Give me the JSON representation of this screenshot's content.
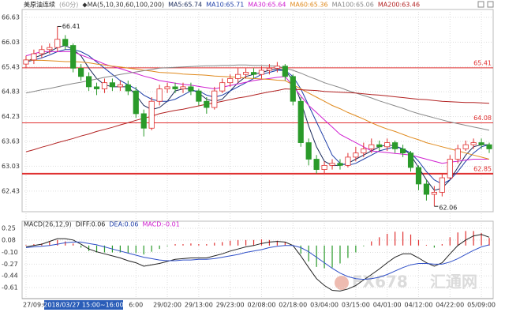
{
  "chart_data": [
    {
      "type": "candlestick",
      "header": [
        {
          "text": "美原油连续",
          "color": "#222222"
        },
        {
          "text": "(60分)",
          "color": "#999999"
        },
        {
          "text": "◆MA(5,10,30,60,100,200)",
          "color": "#333333"
        },
        {
          "text": "MA5:65.74",
          "color": "#1a2a5a"
        },
        {
          "text": "MA10:65.71",
          "color": "#1f3fa8"
        },
        {
          "text": "MA30:65.64",
          "color": "#d020d0"
        },
        {
          "text": "MA60:65.36",
          "color": "#e08a1e"
        },
        {
          "text": "MA100:65.06",
          "color": "#888888"
        },
        {
          "text": "MA200:63.46",
          "color": "#b22222"
        }
      ],
      "categories": [
        "27/09:0",
        null,
        null,
        null,
        null,
        null,
        null,
        null,
        null,
        null,
        null,
        null,
        null,
        null,
        "6:00",
        null,
        null,
        null,
        "29/02:00",
        null,
        null,
        null,
        "29/13:00",
        null,
        null,
        null,
        "29/23:00",
        null,
        null,
        null,
        "02/08:00",
        null,
        null,
        null,
        "02/18:00",
        null,
        null,
        null,
        "03/04:00",
        null,
        null,
        null,
        "03/15:00",
        null,
        null,
        null,
        "04/01:00",
        null,
        null,
        null,
        "04/12:00",
        null,
        null,
        null,
        "04/22:00",
        null,
        null,
        null,
        "05/09:00",
        null
      ],
      "cursor_label": "2018/03/27 15:00~16:00",
      "open": [
        65.5,
        65.6,
        65.75,
        65.85,
        65.9,
        66.1,
        65.95,
        65.4,
        65.2,
        64.95,
        64.9,
        65.05,
        64.95,
        65.0,
        64.85,
        64.3,
        63.95,
        64.6,
        64.9,
        64.95,
        64.9,
        64.95,
        64.85,
        64.6,
        64.45,
        64.85,
        65.05,
        65.15,
        65.25,
        65.3,
        65.25,
        65.35,
        65.4,
        65.45,
        65.2,
        64.6,
        63.6,
        63.2,
        62.95,
        63.05,
        63.1,
        63.05,
        63.25,
        63.35,
        63.45,
        63.55,
        63.5,
        63.6,
        63.45,
        63.35,
        63.0,
        62.6,
        62.35,
        62.4,
        62.75,
        63.2,
        63.45,
        63.55,
        63.6,
        63.55
      ],
      "high": [
        65.7,
        65.85,
        65.95,
        66.0,
        66.41,
        66.2,
        66.0,
        65.5,
        65.3,
        65.05,
        65.15,
        65.15,
        65.1,
        65.1,
        64.95,
        64.4,
        64.7,
        65.0,
        65.05,
        65.05,
        65.05,
        65.05,
        64.9,
        64.7,
        64.95,
        65.15,
        65.25,
        65.4,
        65.4,
        65.4,
        65.45,
        65.5,
        65.55,
        65.5,
        65.25,
        64.7,
        63.7,
        63.3,
        63.15,
        63.2,
        63.2,
        63.35,
        63.5,
        63.6,
        63.7,
        63.65,
        63.7,
        63.65,
        63.55,
        63.4,
        63.05,
        62.7,
        62.55,
        62.85,
        63.3,
        63.55,
        63.65,
        63.7,
        63.7,
        63.6
      ],
      "low": [
        65.4,
        65.5,
        65.65,
        65.75,
        65.8,
        65.85,
        65.3,
        65.1,
        64.85,
        64.75,
        64.8,
        64.85,
        64.85,
        64.75,
        64.2,
        63.75,
        63.9,
        64.5,
        64.8,
        64.8,
        64.8,
        64.75,
        64.5,
        64.3,
        64.4,
        64.8,
        64.95,
        65.05,
        65.15,
        65.15,
        65.15,
        65.25,
        65.3,
        65.1,
        64.5,
        63.5,
        63.05,
        62.85,
        62.85,
        62.95,
        62.95,
        63.0,
        63.15,
        63.25,
        63.35,
        63.4,
        63.4,
        63.35,
        63.25,
        62.9,
        62.45,
        62.2,
        62.06,
        62.3,
        62.7,
        63.1,
        63.4,
        63.45,
        63.45,
        63.35
      ],
      "close": [
        65.6,
        65.75,
        65.85,
        65.9,
        66.1,
        65.95,
        65.4,
        65.2,
        64.95,
        64.9,
        65.05,
        64.95,
        65.0,
        64.85,
        64.3,
        63.95,
        64.6,
        64.9,
        64.95,
        64.9,
        64.95,
        64.85,
        64.6,
        64.45,
        64.85,
        65.05,
        65.15,
        65.25,
        65.3,
        65.25,
        65.35,
        65.4,
        65.45,
        65.2,
        64.6,
        63.6,
        63.2,
        62.95,
        63.05,
        63.1,
        63.05,
        63.25,
        63.35,
        63.45,
        63.55,
        63.5,
        63.6,
        63.45,
        63.35,
        63.0,
        62.6,
        62.35,
        62.4,
        62.75,
        63.2,
        63.45,
        63.55,
        63.6,
        63.55,
        63.45
      ],
      "up_color": "#e03030",
      "down_color": "#2a9a2a",
      "ylim": [
        61.93,
        66.82
      ],
      "yticks": [
        66.63,
        66.03,
        65.43,
        64.83,
        64.23,
        63.63,
        63.03,
        62.43
      ],
      "levels": [
        65.41,
        64.08,
        62.85
      ],
      "level_color": "#e03030",
      "series": [
        {
          "name": "MA5",
          "color": "#1a2a5a",
          "values": [
            65.55,
            65.65,
            65.72,
            65.8,
            65.9,
            65.95,
            65.85,
            65.7,
            65.4,
            65.15,
            65.0,
            64.95,
            64.95,
            64.95,
            64.75,
            64.5,
            64.4,
            64.45,
            64.6,
            64.85,
            64.9,
            64.9,
            64.8,
            64.65,
            64.6,
            64.65,
            64.85,
            65.05,
            65.2,
            65.25,
            65.3,
            65.35,
            65.38,
            65.35,
            65.1,
            64.6,
            64.0,
            63.5,
            63.15,
            63.05,
            63.05,
            63.1,
            63.2,
            63.3,
            63.4,
            63.5,
            63.55,
            63.52,
            63.45,
            63.3,
            63.0,
            62.7,
            62.45,
            62.5,
            62.7,
            63.0,
            63.3,
            63.5,
            63.55,
            63.55
          ]
        },
        {
          "name": "MA10",
          "color": "#1f3fa8",
          "values": [
            65.55,
            65.6,
            65.65,
            65.72,
            65.8,
            65.85,
            65.85,
            65.8,
            65.7,
            65.55,
            65.4,
            65.25,
            65.1,
            65.0,
            64.9,
            64.75,
            64.65,
            64.6,
            64.6,
            64.65,
            64.75,
            64.85,
            64.85,
            64.75,
            64.7,
            64.75,
            64.85,
            64.95,
            65.05,
            65.15,
            65.25,
            65.3,
            65.35,
            65.35,
            65.2,
            64.9,
            64.5,
            64.1,
            63.7,
            63.3,
            63.1,
            63.05,
            63.1,
            63.2,
            63.3,
            63.4,
            63.45,
            63.5,
            63.45,
            63.35,
            63.15,
            62.9,
            62.7,
            62.6,
            62.7,
            62.9,
            63.15,
            63.35,
            63.5,
            63.55
          ]
        },
        {
          "name": "MA30",
          "color": "#d020d0",
          "values": [
            65.7,
            65.75,
            65.8,
            65.8,
            65.8,
            65.8,
            65.8,
            65.72,
            65.65,
            65.58,
            65.5,
            65.44,
            65.39,
            65.33,
            65.27,
            65.21,
            65.16,
            65.1,
            65.07,
            65.04,
            65.01,
            64.99,
            64.96,
            64.93,
            64.9,
            64.94,
            64.98,
            65.02,
            65.06,
            65.1,
            65.13,
            65.15,
            65.18,
            65.2,
            64.97,
            64.73,
            64.5,
            64.33,
            64.15,
            63.98,
            63.8,
            63.7,
            63.6,
            63.5,
            63.4,
            63.38,
            63.36,
            63.34,
            63.32,
            63.3,
            63.25,
            63.2,
            63.15,
            63.1,
            63.13,
            63.15,
            63.18,
            63.2,
            63.2,
            63.2
          ]
        },
        {
          "name": "MA60",
          "color": "#e08a1e",
          "values": [
            65.6,
            65.59,
            65.59,
            65.58,
            65.57,
            65.56,
            65.56,
            65.55,
            65.53,
            65.5,
            65.48,
            65.45,
            65.43,
            65.4,
            65.38,
            65.35,
            65.33,
            65.3,
            65.29,
            65.28,
            65.26,
            65.25,
            65.24,
            65.23,
            65.21,
            65.2,
            65.19,
            65.18,
            65.16,
            65.15,
            65.14,
            65.13,
            65.11,
            65.1,
            65.0,
            64.9,
            64.8,
            64.7,
            64.6,
            64.5,
            64.42,
            64.33,
            64.25,
            64.17,
            64.08,
            64.0,
            63.93,
            63.87,
            63.8,
            63.73,
            63.67,
            63.6,
            63.55,
            63.5,
            63.45,
            63.4,
            63.35,
            63.3,
            63.25,
            63.2
          ]
        },
        {
          "name": "MA100",
          "color": "#888888",
          "values": [
            64.8,
            64.84,
            64.88,
            64.91,
            64.95,
            64.99,
            65.03,
            65.06,
            65.1,
            65.14,
            65.18,
            65.21,
            65.25,
            65.28,
            65.31,
            65.34,
            65.37,
            65.4,
            65.41,
            65.42,
            65.43,
            65.44,
            65.45,
            65.46,
            65.46,
            65.47,
            65.47,
            65.48,
            65.48,
            65.47,
            65.47,
            65.46,
            65.45,
            65.4,
            65.35,
            65.28,
            65.2,
            65.13,
            65.05,
            64.99,
            64.93,
            64.86,
            64.8,
            64.74,
            64.68,
            64.61,
            64.55,
            64.49,
            64.43,
            64.36,
            64.3,
            64.25,
            64.2,
            64.15,
            64.1,
            64.06,
            64.02,
            63.98,
            63.94,
            63.9
          ]
        },
        {
          "name": "MA200",
          "color": "#b22222",
          "values": [
            63.38,
            63.43,
            63.49,
            63.54,
            63.6,
            63.65,
            63.7,
            63.76,
            63.81,
            63.87,
            63.92,
            63.97,
            64.03,
            64.08,
            64.14,
            64.19,
            64.24,
            64.3,
            64.34,
            64.38,
            64.41,
            64.45,
            64.49,
            64.53,
            64.56,
            64.6,
            64.64,
            64.68,
            64.71,
            64.75,
            64.79,
            64.83,
            64.86,
            64.9,
            64.89,
            64.88,
            64.87,
            64.86,
            64.84,
            64.83,
            64.82,
            64.81,
            64.8,
            64.78,
            64.76,
            64.75,
            64.73,
            64.71,
            64.69,
            64.67,
            64.65,
            64.64,
            64.62,
            64.6,
            64.59,
            64.58,
            64.57,
            64.57,
            64.56,
            64.55
          ]
        }
      ]
    },
    {
      "type": "macd",
      "header": [
        {
          "text": "MACD(26,12,9)",
          "color": "#333333"
        },
        {
          "text": "DIFF:0.06",
          "color": "#222222"
        },
        {
          "text": "DEA:0.06",
          "color": "#1f3fa8"
        },
        {
          "text": "MACD:-0.01",
          "color": "#d020d0"
        }
      ],
      "ylim": [
        -0.77,
        0.33
      ],
      "yticks": [
        0.25,
        0.08,
        {
          "value": -0.1,
          "label": "-0.10"
        },
        -0.27,
        -0.44,
        -0.61
      ],
      "series": [
        {
          "name": "DIFF",
          "color": "#222222",
          "values": [
            -0.02,
            0.0,
            0.02,
            0.06,
            0.1,
            0.1,
            0.08,
            0.02,
            -0.05,
            -0.09,
            -0.12,
            -0.15,
            -0.18,
            -0.22,
            -0.25,
            -0.3,
            -0.28,
            -0.26,
            -0.23,
            -0.2,
            -0.19,
            -0.18,
            -0.18,
            -0.18,
            -0.15,
            -0.12,
            -0.08,
            -0.05,
            -0.02,
            0.0,
            0.03,
            0.05,
            0.06,
            0.05,
            0.0,
            -0.15,
            -0.32,
            -0.48,
            -0.58,
            -0.65,
            -0.66,
            -0.63,
            -0.58,
            -0.5,
            -0.42,
            -0.34,
            -0.25,
            -0.17,
            -0.12,
            -0.12,
            -0.18,
            -0.25,
            -0.3,
            -0.25,
            -0.12,
            0.0,
            0.08,
            0.14,
            0.16,
            0.12
          ]
        },
        {
          "name": "DEA",
          "color": "#3050c8",
          "values": [
            -0.03,
            -0.02,
            -0.01,
            0.0,
            0.02,
            0.04,
            0.05,
            0.05,
            0.03,
            0.01,
            -0.02,
            -0.05,
            -0.08,
            -0.11,
            -0.14,
            -0.17,
            -0.19,
            -0.21,
            -0.22,
            -0.22,
            -0.21,
            -0.21,
            -0.2,
            -0.2,
            -0.19,
            -0.17,
            -0.15,
            -0.13,
            -0.1,
            -0.08,
            -0.06,
            -0.03,
            -0.01,
            0.0,
            0.0,
            -0.03,
            -0.09,
            -0.17,
            -0.25,
            -0.33,
            -0.4,
            -0.45,
            -0.48,
            -0.49,
            -0.48,
            -0.46,
            -0.42,
            -0.37,
            -0.32,
            -0.28,
            -0.26,
            -0.26,
            -0.27,
            -0.27,
            -0.24,
            -0.19,
            -0.13,
            -0.07,
            -0.02,
            0.01
          ]
        }
      ],
      "histogram": [
        0.01,
        0.02,
        0.03,
        0.06,
        0.08,
        0.06,
        0.03,
        -0.03,
        -0.08,
        -0.1,
        -0.1,
        -0.1,
        -0.1,
        -0.11,
        -0.11,
        -0.13,
        -0.09,
        -0.05,
        -0.01,
        0.02,
        0.02,
        0.03,
        0.02,
        0.02,
        0.04,
        0.05,
        0.07,
        0.08,
        0.08,
        0.08,
        0.09,
        0.08,
        0.07,
        0.05,
        0.0,
        -0.12,
        -0.23,
        -0.31,
        -0.33,
        -0.32,
        -0.26,
        -0.18,
        -0.1,
        -0.01,
        0.06,
        0.12,
        0.17,
        0.2,
        0.2,
        0.16,
        0.08,
        0.01,
        -0.03,
        0.02,
        0.12,
        0.19,
        0.21,
        0.21,
        0.18,
        0.11
      ],
      "up_color": "#e03030",
      "down_color": "#2a9a2a"
    }
  ],
  "watermark": [
    "FX678",
    "汇通网"
  ]
}
